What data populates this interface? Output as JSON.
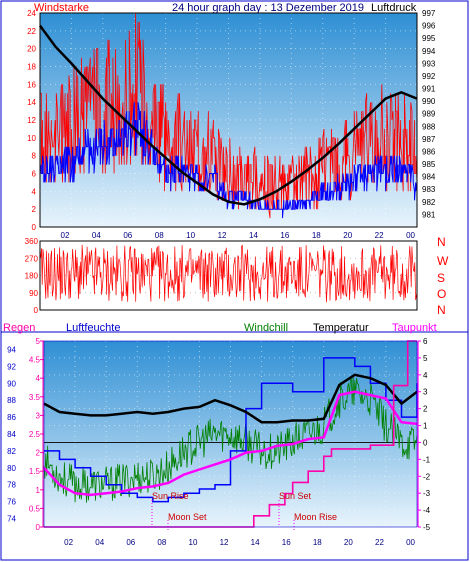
{
  "colors": {
    "wind": "#ff0000",
    "gust": "#0000ff",
    "pressure": "#000000",
    "humidity": "#0000ff",
    "windchill": "#008000",
    "temperature": "#000000",
    "dewpoint": "#ff00ff",
    "rain": "#ff00aa",
    "sky_top": "#2e8fd4",
    "sky_bottom": "#e8f4fc"
  },
  "header": {
    "left_label": "Windstarke",
    "title": "24 hour graph day : 13 Dezember 2019",
    "right_label": "Luftdruck"
  },
  "legend": {
    "rain": "Regen",
    "humidity": "Luftfeuchte",
    "windchill": "Windchill",
    "temperature": "Temperatur",
    "dewpoint": "Taupunkt"
  },
  "astro": {
    "sun_rise": "Sun Rise",
    "moon_set": "Moon Set",
    "sun_set": "Sun Set",
    "moon_rise": "Moon Rise"
  },
  "chart_data": [
    {
      "id": "wind-pressure",
      "type": "line",
      "x_ticks": [
        "02",
        "04",
        "06",
        "08",
        "10",
        "12",
        "14",
        "16",
        "18",
        "20",
        "22",
        "00"
      ],
      "left_axis": {
        "label": "Windstarke",
        "ylim": [
          0,
          24
        ],
        "ticks": [
          0,
          2,
          4,
          6,
          8,
          10,
          12,
          14,
          16,
          18,
          20,
          22,
          24
        ]
      },
      "right_axis": {
        "label": "Luftdruck",
        "ylim": [
          980,
          997
        ],
        "ticks": [
          981,
          982,
          983,
          984,
          985,
          986,
          987,
          988,
          989,
          990,
          991,
          992,
          993,
          994,
          995,
          996,
          997
        ]
      },
      "series": [
        {
          "name": "Luftdruck",
          "axis": "right",
          "x": [
            0,
            1,
            2,
            3,
            4,
            5,
            6,
            7,
            8,
            9,
            10,
            11,
            12,
            13,
            14,
            15,
            16,
            17,
            18,
            19,
            20,
            21,
            22,
            23,
            24
          ],
          "y": [
            996,
            994.3,
            993,
            991.6,
            990.2,
            989,
            987.8,
            986.6,
            985.5,
            984.4,
            983.5,
            982.6,
            982,
            981.8,
            982.2,
            982.8,
            983.6,
            984.5,
            985.5,
            986.6,
            987.8,
            989,
            990.2,
            990.7,
            990.2
          ]
        }
      ],
      "wind_envelope": {
        "x": [
          0,
          1,
          2,
          3,
          4,
          5,
          6,
          7,
          8,
          9,
          10,
          11,
          12,
          13,
          14,
          15,
          16,
          17,
          18,
          19,
          20,
          21,
          22,
          23,
          24
        ],
        "y": [
          12,
          12,
          14,
          16,
          17,
          17,
          21,
          17,
          11,
          11,
          10,
          10,
          6,
          6,
          4,
          4,
          4,
          5,
          7,
          8,
          10,
          11,
          12,
          12,
          9
        ]
      }
    },
    {
      "id": "wind-direction",
      "type": "bar",
      "x_ticks": [
        "02",
        "04",
        "06",
        "08",
        "10",
        "12",
        "14",
        "16",
        "18",
        "20",
        "22",
        "00"
      ],
      "left_axis": {
        "ylim": [
          0,
          360
        ],
        "ticks": [
          0,
          90,
          180,
          270,
          360
        ]
      },
      "right_axis_labels": [
        "N",
        "W",
        "S",
        "O",
        "N"
      ]
    },
    {
      "id": "climate",
      "type": "line",
      "x_ticks": [
        "02",
        "04",
        "06",
        "08",
        "10",
        "12",
        "14",
        "16",
        "18",
        "20",
        "22",
        "00"
      ],
      "left_axis_rain": {
        "label": "Regen",
        "ylim": [
          0,
          5
        ],
        "ticks": [
          0,
          0.5,
          1,
          1.5,
          2,
          2.5,
          3,
          3.5,
          4,
          4.5,
          5
        ]
      },
      "left_axis_humidity": {
        "label": "Luftfeuchte",
        "ylim": [
          73,
          95
        ],
        "ticks": [
          74,
          76,
          78,
          80,
          82,
          84,
          86,
          88,
          90,
          92,
          94
        ]
      },
      "right_axis": {
        "ylim": [
          -5,
          6
        ],
        "ticks": [
          -5,
          -4,
          -3,
          -2,
          -1,
          0,
          1,
          2,
          3,
          4,
          5,
          6
        ]
      },
      "series": [
        {
          "name": "Luftfeuchte",
          "axis": "humidity",
          "x": [
            0,
            1,
            2,
            3,
            4,
            5,
            6,
            7,
            8,
            9,
            10,
            11,
            12,
            13,
            14,
            15,
            16,
            17,
            18,
            19,
            20,
            21,
            22,
            23,
            24
          ],
          "y": [
            82,
            81,
            80,
            79,
            78,
            77,
            76.5,
            76,
            76.5,
            77,
            77.5,
            78,
            82,
            87,
            90,
            90,
            89,
            89,
            93,
            93,
            92,
            90,
            88,
            86,
            90
          ]
        },
        {
          "name": "Windchill",
          "axis": "right",
          "x": [
            0,
            1,
            2,
            3,
            4,
            5,
            6,
            7,
            8,
            9,
            10,
            11,
            12,
            13,
            14,
            15,
            16,
            17,
            18,
            19,
            20,
            21,
            22,
            23,
            24
          ],
          "y": [
            -1,
            -2,
            -2.5,
            -2.5,
            -2.5,
            -2.3,
            -2,
            -2,
            -1.5,
            -0.5,
            0,
            0.5,
            0.5,
            0,
            -0.5,
            -0.5,
            0,
            0.5,
            1,
            2.5,
            3,
            2.5,
            1,
            0,
            0
          ]
        },
        {
          "name": "Temperatur",
          "axis": "right",
          "x": [
            0,
            1,
            2,
            3,
            4,
            5,
            6,
            7,
            8,
            9,
            10,
            11,
            12,
            13,
            14,
            15,
            16,
            17,
            18,
            19,
            20,
            21,
            22,
            23,
            24
          ],
          "y": [
            2.3,
            1.8,
            1.7,
            1.6,
            1.6,
            1.7,
            1.8,
            1.7,
            1.8,
            2,
            2.1,
            2.5,
            2.2,
            1.8,
            1.2,
            1.2,
            1.3,
            1.3,
            1.4,
            3.4,
            4,
            3.8,
            3.4,
            2.3,
            3
          ]
        },
        {
          "name": "Taupunkt",
          "axis": "right",
          "x": [
            0,
            1,
            2,
            3,
            4,
            5,
            6,
            7,
            8,
            9,
            10,
            11,
            12,
            13,
            14,
            15,
            16,
            17,
            18,
            19,
            20,
            21,
            22,
            23,
            24
          ],
          "y": [
            -1.5,
            -2.5,
            -3,
            -3.1,
            -3,
            -2.9,
            -2.7,
            -2.6,
            -2.4,
            -1.9,
            -1.6,
            -1.3,
            -1,
            -0.6,
            -0.5,
            -0.2,
            -0.1,
            0.2,
            0.3,
            2.8,
            3,
            2.8,
            2.6,
            1.2,
            1.1
          ]
        },
        {
          "name": "Regen",
          "axis": "rain",
          "x": [
            0,
            13.5,
            13.5,
            14.5,
            14.5,
            15.5,
            15.5,
            16,
            16,
            17,
            17,
            18,
            18,
            18.5,
            18.5,
            21,
            21,
            22.5,
            22.5,
            23.4,
            23.4,
            24
          ],
          "y": [
            0,
            0,
            0.3,
            0.3,
            0.6,
            0.6,
            0.9,
            0.9,
            1.2,
            1.2,
            1.5,
            1.5,
            1.9,
            1.9,
            2.1,
            2.1,
            2.2,
            2.2,
            3.8,
            3.8,
            5,
            5
          ]
        }
      ]
    }
  ]
}
